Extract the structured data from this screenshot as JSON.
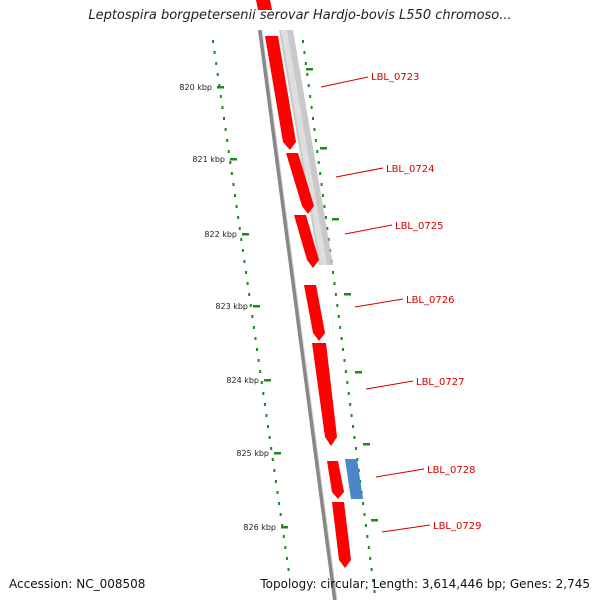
{
  "title": "Leptospira borgpetersenii serovar Hardjo-bovis L550 chromoso...",
  "accession": "Accession: NC_008508",
  "summary": "Topology: circular; Length: 3,614,446 bp; Genes: 2,745",
  "colors": {
    "forward_gene": "#ff0000",
    "reverse_gene": "#4a86c8",
    "other_track": "#c0c0c0",
    "backbone": "#888888",
    "scale": "#1a8a1a",
    "label": "#d40000"
  },
  "scale_labels": [
    "820 kbp",
    "821 kbp",
    "822 kbp",
    "823 kbp",
    "824 kbp",
    "825 kbp",
    "826 kbp"
  ],
  "genes": [
    {
      "label": "LBL_0723"
    },
    {
      "label": "LBL_0724"
    },
    {
      "label": "LBL_0725"
    },
    {
      "label": "LBL_0726"
    },
    {
      "label": "LBL_0727"
    },
    {
      "label": "LBL_0728"
    },
    {
      "label": "LBL_0729"
    }
  ]
}
